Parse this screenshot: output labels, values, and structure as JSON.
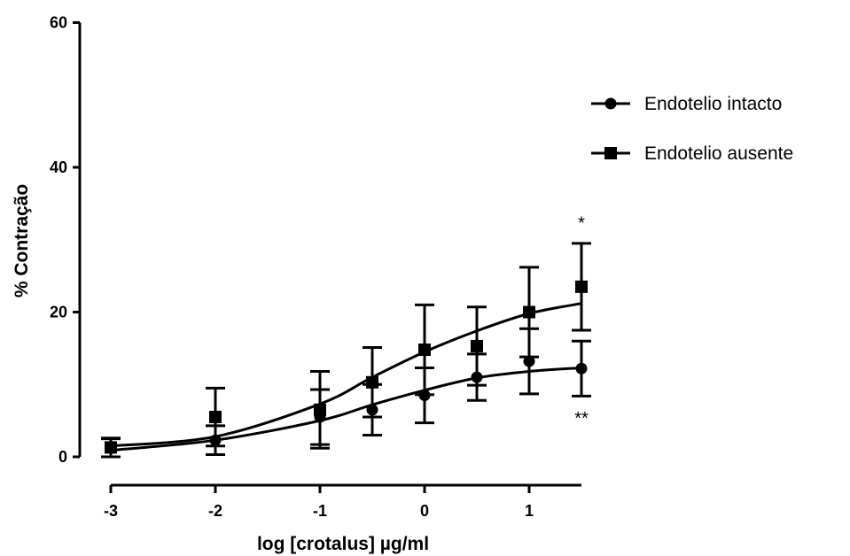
{
  "chart_data": {
    "type": "scatter",
    "xlabel": "log [crotalus] µg/ml",
    "ylabel": "% Contração",
    "xlim": [
      -3,
      1.5
    ],
    "ylim": [
      0,
      60
    ],
    "xticks": [
      "-3",
      "-2",
      "-1",
      "0",
      "1"
    ],
    "yticks": [
      "0",
      "20",
      "40",
      "60"
    ],
    "legend_position": "right",
    "grid": false,
    "series": [
      {
        "name": "Endotelio intacto",
        "marker": "circle",
        "x": [
          -3,
          -2,
          -1,
          -0.5,
          0,
          0.5,
          1,
          1.5
        ],
        "y": [
          1.2,
          2.3,
          5.5,
          6.5,
          8.5,
          11.0,
          13.2,
          12.2
        ],
        "err": [
          1.3,
          2.0,
          3.8,
          3.5,
          3.8,
          3.2,
          4.5,
          3.8
        ],
        "fit": [
          0.9,
          2.3,
          5.0,
          7.2,
          9.2,
          10.9,
          11.8,
          12.3
        ]
      },
      {
        "name": "Endotelio ausente",
        "marker": "square",
        "x": [
          -3,
          -2,
          -1,
          -0.5,
          0,
          0.5,
          1,
          1.5
        ],
        "y": [
          1.3,
          5.5,
          6.5,
          10.3,
          14.8,
          15.3,
          20.0,
          23.5
        ],
        "err": [
          1.3,
          4.0,
          5.3,
          4.8,
          6.2,
          5.4,
          6.2,
          6.0
        ],
        "fit": [
          1.5,
          2.8,
          7.3,
          11.0,
          14.5,
          17.4,
          19.8,
          21.2
        ]
      }
    ],
    "annotations": [
      {
        "text": "*",
        "x": 1.5,
        "y": 31.5
      },
      {
        "text": "**",
        "x": 1.5,
        "y": 4.5
      }
    ]
  }
}
